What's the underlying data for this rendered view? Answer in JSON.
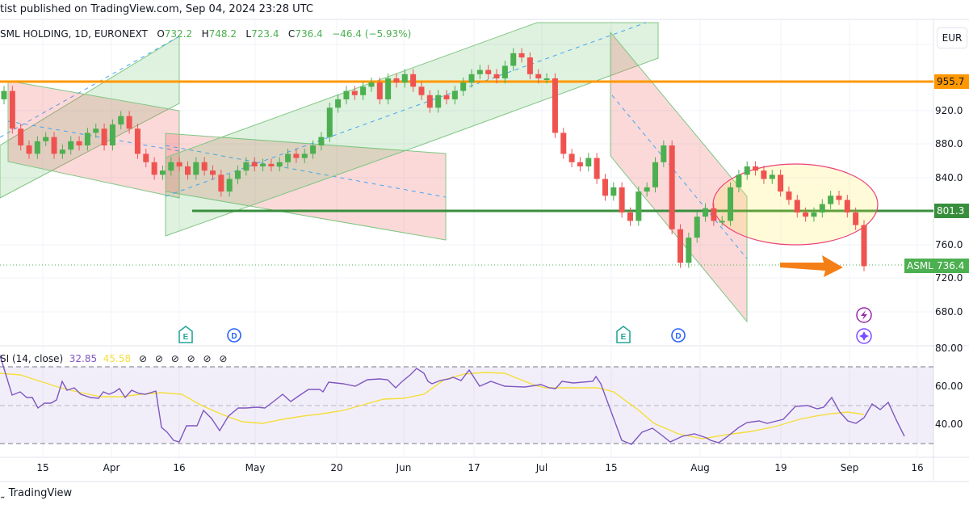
{
  "header": {
    "published": "tist published on TradingView.com, Sep 04, 2024 23:28 UTC"
  },
  "legend": {
    "symbol": "SML HOLDING, 1D, EURONEXT",
    "o_label": "O",
    "o": "732.2",
    "h_label": "H",
    "h": "748.2",
    "l_label": "L",
    "l": "723.4",
    "c_label": "C",
    "c": "736.4",
    "change": "−46.4 (−5.93%)"
  },
  "currency_button": "EUR",
  "price_axis": {
    "ticks": [
      "920.0",
      "880.0",
      "840.0",
      "760.0",
      "720.0",
      "680.0"
    ],
    "tags": {
      "resistance": {
        "value": "955.7",
        "color": "#ff9800"
      },
      "support": {
        "value": "801.3",
        "color": "#388e3c"
      },
      "last": {
        "symbol": "ASML",
        "value": "736.4",
        "color": "#4caf50"
      }
    }
  },
  "rsi": {
    "title": "SI (14, close)",
    "value": "32.85",
    "ma_value": "45.58",
    "icons": [
      "⊘",
      "⊘",
      "⊘",
      "⊘",
      "⊘",
      "⊘"
    ],
    "ticks": [
      "80.00",
      "60.00",
      "40.00"
    ]
  },
  "time_axis": [
    "15",
    "Apr",
    "16",
    "May",
    "20",
    "Jun",
    "17",
    "Jul",
    "15",
    "Aug",
    "19",
    "Sep",
    "16"
  ],
  "events": {
    "earnings": "E",
    "dividend": "D"
  },
  "footer": "TradingView",
  "chart_data": {
    "type": "candlestick",
    "title": "ASML HOLDING, 1D, EURONEXT",
    "xlabel": "",
    "ylabel": "EUR",
    "ylim": [
      650,
      990
    ],
    "x_ticks": [
      "15",
      "Apr",
      "16",
      "May",
      "20",
      "Jun",
      "17",
      "Jul",
      "15",
      "Aug",
      "19",
      "Sep",
      "16"
    ],
    "y_ticks": [
      680,
      720,
      760,
      800,
      840,
      880,
      920,
      960
    ],
    "last_bar": {
      "open": 732.2,
      "high": 748.2,
      "low": 723.4,
      "close": 736.4,
      "change": -46.4,
      "change_pct": -5.93
    },
    "horizontal_lines": [
      {
        "name": "resistance",
        "value": 955.7,
        "color": "#ff9800"
      },
      {
        "name": "support",
        "value": 801.3,
        "color": "#388e3c"
      }
    ],
    "channels": [
      {
        "name": "ascending channel 1",
        "color": "green"
      },
      {
        "name": "descending channel 1",
        "color": "red"
      },
      {
        "name": "ascending channel 2",
        "color": "green"
      },
      {
        "name": "descending channel 2 (Jul-Aug)",
        "color": "red"
      }
    ],
    "annotations": [
      "consolidation ellipse Aug-Sep around 801",
      "orange arrow pointing to last price 736.4"
    ],
    "closes_approx": [
      945,
      900,
      880,
      870,
      885,
      890,
      870,
      875,
      885,
      880,
      895,
      900,
      880,
      905,
      915,
      900,
      870,
      860,
      845,
      850,
      860,
      855,
      845,
      860,
      850,
      845,
      825,
      840,
      850,
      860,
      855,
      858,
      855,
      860,
      870,
      865,
      870,
      880,
      890,
      925,
      935,
      945,
      940,
      950,
      955,
      935,
      960,
      955,
      965,
      950,
      940,
      925,
      940,
      935,
      945,
      955,
      965,
      970,
      965,
      960,
      975,
      990,
      985,
      965,
      960,
      960,
      895,
      870,
      860,
      855,
      865,
      840,
      820,
      830,
      800,
      790,
      825,
      830,
      860,
      880,
      780,
      740,
      770,
      795,
      805,
      790,
      790,
      830,
      845,
      855,
      850,
      840,
      845,
      825,
      815,
      800,
      795,
      800,
      810,
      820,
      815,
      800,
      785,
      736
    ],
    "rsi": {
      "series": [
        {
          "name": "RSI(14)",
          "last": 32.85,
          "color": "#7e57c2"
        },
        {
          "name": "RSI MA",
          "last": 45.58,
          "color": "#f5de3b"
        }
      ],
      "bands": [
        30,
        50,
        70
      ],
      "ylim": [
        25,
        80
      ]
    }
  }
}
